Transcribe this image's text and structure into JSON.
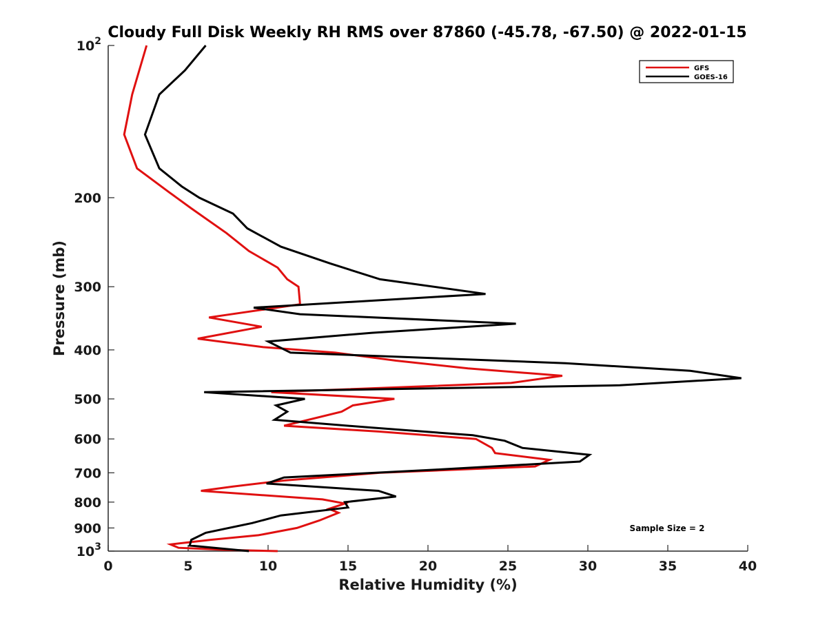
{
  "chart_data": {
    "type": "line",
    "title": "Cloudy Full Disk Weekly RH RMS over 87860 (-45.78, -67.50) @ 2022-01-15",
    "xlabel": "Relative Humidity (%)",
    "ylabel": "Pressure (mb)",
    "xlim": [
      0,
      40
    ],
    "ylim": [
      100,
      1000
    ],
    "y_scale": "log",
    "y_reversed": true,
    "x_ticks": [
      0,
      5,
      10,
      15,
      20,
      25,
      30,
      35,
      40
    ],
    "x_tick_labels": [
      "0",
      "5",
      "10",
      "15",
      "20",
      "25",
      "30",
      "35",
      "40"
    ],
    "y_ticks": [
      100,
      200,
      300,
      400,
      500,
      600,
      700,
      800,
      900,
      1000
    ],
    "y_tick_labels": [
      {
        "base": "10",
        "exp": "2"
      },
      {
        "base": "200"
      },
      {
        "base": "300"
      },
      {
        "base": "400"
      },
      {
        "base": "500"
      },
      {
        "base": "600"
      },
      {
        "base": "700"
      },
      {
        "base": "800"
      },
      {
        "base": "900"
      },
      {
        "base": "10",
        "exp": "3"
      }
    ],
    "grid": false,
    "legend": "top-right",
    "annotation": "Sample Size = 2",
    "series": [
      {
        "name": "GFS",
        "color": "#e01010",
        "points": [
          [
            2.4,
            100
          ],
          [
            1.5,
            125
          ],
          [
            1.0,
            150
          ],
          [
            1.8,
            175
          ],
          [
            3.8,
            195
          ],
          [
            5.2,
            210
          ],
          [
            7.4,
            235
          ],
          [
            8.8,
            255
          ],
          [
            10.6,
            275
          ],
          [
            11.2,
            290
          ],
          [
            11.9,
            300
          ],
          [
            12.0,
            325
          ],
          [
            6.3,
            345
          ],
          [
            9.6,
            360
          ],
          [
            5.6,
            380
          ],
          [
            9.7,
            395
          ],
          [
            14.2,
            405
          ],
          [
            18.0,
            420
          ],
          [
            22.5,
            435
          ],
          [
            28.4,
            450
          ],
          [
            25.2,
            465
          ],
          [
            10.2,
            485
          ],
          [
            17.9,
            500
          ],
          [
            15.3,
            515
          ],
          [
            14.6,
            530
          ],
          [
            11.0,
            565
          ],
          [
            16.9,
            580
          ],
          [
            23.0,
            600
          ],
          [
            24.0,
            625
          ],
          [
            24.2,
            640
          ],
          [
            27.6,
            660
          ],
          [
            26.7,
            680
          ],
          [
            17.0,
            700
          ],
          [
            11.0,
            725
          ],
          [
            7.8,
            745
          ],
          [
            5.8,
            760
          ],
          [
            13.4,
            790
          ],
          [
            14.8,
            805
          ],
          [
            13.8,
            825
          ],
          [
            14.4,
            840
          ],
          [
            13.2,
            870
          ],
          [
            11.8,
            900
          ],
          [
            9.4,
            930
          ],
          [
            6.4,
            950
          ],
          [
            3.9,
            970
          ],
          [
            4.4,
            985
          ],
          [
            7.6,
            995
          ],
          [
            10.6,
            1000
          ]
        ]
      },
      {
        "name": "GOES-16",
        "color": "#000000",
        "points": [
          [
            6.1,
            100
          ],
          [
            4.8,
            112
          ],
          [
            3.2,
            125
          ],
          [
            2.3,
            150
          ],
          [
            3.2,
            175
          ],
          [
            4.6,
            190
          ],
          [
            5.7,
            200
          ],
          [
            7.8,
            215
          ],
          [
            8.7,
            230
          ],
          [
            10.8,
            250
          ],
          [
            13.9,
            270
          ],
          [
            17.0,
            290
          ],
          [
            23.6,
            310
          ],
          [
            9.1,
            330
          ],
          [
            12.0,
            340
          ],
          [
            25.5,
            355
          ],
          [
            16.5,
            370
          ],
          [
            10.0,
            385
          ],
          [
            11.4,
            405
          ],
          [
            28.6,
            425
          ],
          [
            36.4,
            440
          ],
          [
            39.6,
            455
          ],
          [
            32.0,
            470
          ],
          [
            6.0,
            485
          ],
          [
            12.3,
            500
          ],
          [
            10.5,
            515
          ],
          [
            11.2,
            530
          ],
          [
            10.4,
            550
          ],
          [
            16.5,
            570
          ],
          [
            22.8,
            590
          ],
          [
            24.8,
            605
          ],
          [
            25.9,
            625
          ],
          [
            30.1,
            645
          ],
          [
            29.5,
            665
          ],
          [
            20.5,
            690
          ],
          [
            11.0,
            715
          ],
          [
            9.9,
            735
          ],
          [
            16.9,
            760
          ],
          [
            18.0,
            780
          ],
          [
            14.8,
            800
          ],
          [
            15.0,
            820
          ],
          [
            10.8,
            850
          ],
          [
            9.0,
            880
          ],
          [
            6.1,
            920
          ],
          [
            5.2,
            950
          ],
          [
            5.1,
            975
          ],
          [
            8.8,
            1000
          ]
        ]
      }
    ]
  }
}
